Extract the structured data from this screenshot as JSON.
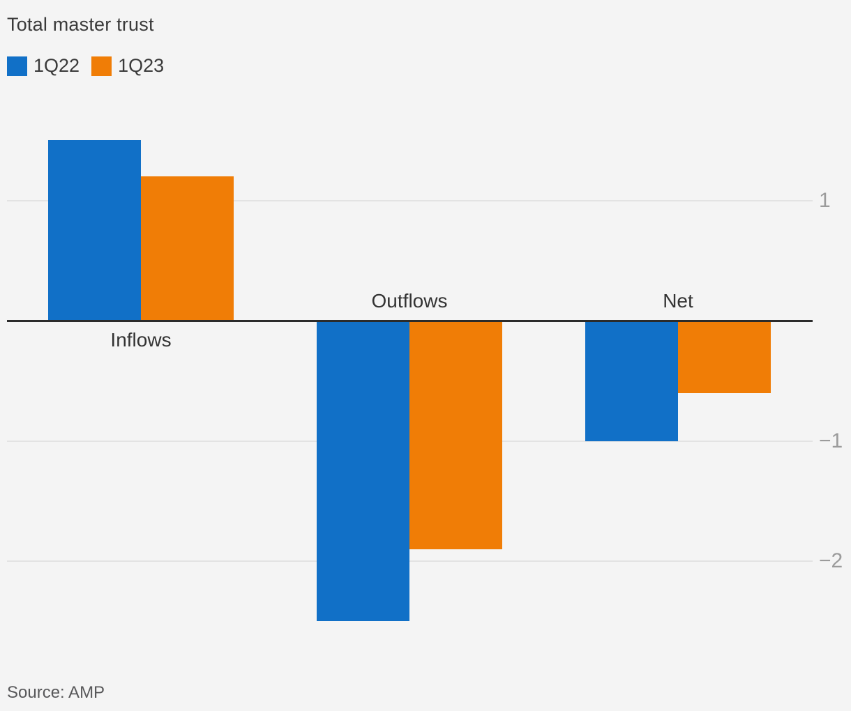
{
  "title": "Total master trust",
  "source": "Source: AMP",
  "legend": [
    {
      "label": "1Q22",
      "color": "#1170c7"
    },
    {
      "label": "1Q23",
      "color": "#f07d06"
    }
  ],
  "colors": {
    "background": "#f4f4f4",
    "gridline": "#e3e3e3",
    "zero_line": "#2b2b2b",
    "axis_label": "#9b9b9b",
    "text": "#3a3a3a",
    "series_1q22": "#1170c7",
    "series_1q23": "#f07d06"
  },
  "chart_data": {
    "type": "bar",
    "title": "Total master trust",
    "categories": [
      "Inflows",
      "Outflows",
      "Net"
    ],
    "series": [
      {
        "name": "1Q22",
        "color": "#1170c7",
        "values": [
          1.5,
          -2.5,
          -1.0
        ]
      },
      {
        "name": "1Q23",
        "color": "#f07d06",
        "values": [
          1.2,
          -1.9,
          -0.6
        ]
      }
    ],
    "yticks": [
      {
        "value": 1,
        "label": "1"
      },
      {
        "value": -1,
        "label": "−1"
      },
      {
        "value": -2,
        "label": "−2"
      }
    ],
    "ylim": [
      -2.6,
      1.6
    ],
    "xlabel": "",
    "ylabel": "",
    "grid": true,
    "zero_line": true,
    "legend_position": "top-left",
    "source": "Source: AMP"
  }
}
